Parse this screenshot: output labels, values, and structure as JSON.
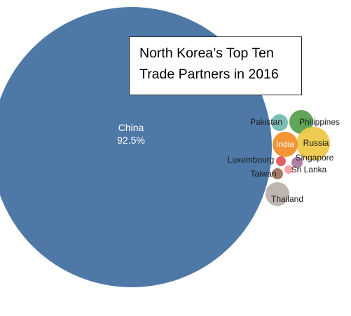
{
  "chart_data": {
    "type": "bubble",
    "title_lines": [
      "North Korea’s Top Ten",
      "Trade Partners in 2016"
    ],
    "series": [
      {
        "name": "China",
        "value": 92.5,
        "label": "China",
        "value_label": "92.5%",
        "color": "#4e79a7"
      },
      {
        "name": "Pakistan",
        "label": "Pakistan",
        "color": "#76b7b2"
      },
      {
        "name": "Philippines",
        "label": "Philippines",
        "color": "#59a14f"
      },
      {
        "name": "Russia",
        "label": "Russia",
        "color": "#edc948"
      },
      {
        "name": "India",
        "label": "India",
        "color": "#f28e2b"
      },
      {
        "name": "Singapore",
        "label": "Singapore",
        "color": "#b07aa1"
      },
      {
        "name": "Luxembourg",
        "label": "Luxembourg",
        "color": "#e15759"
      },
      {
        "name": "Sri Lanka",
        "label": "Sri Lanka",
        "color": "#ff9da7"
      },
      {
        "name": "Taiwan",
        "label": "Taiwan",
        "color": "#9c755f"
      },
      {
        "name": "Thailand",
        "label": "Thailand",
        "color": "#bab0ac"
      }
    ]
  }
}
